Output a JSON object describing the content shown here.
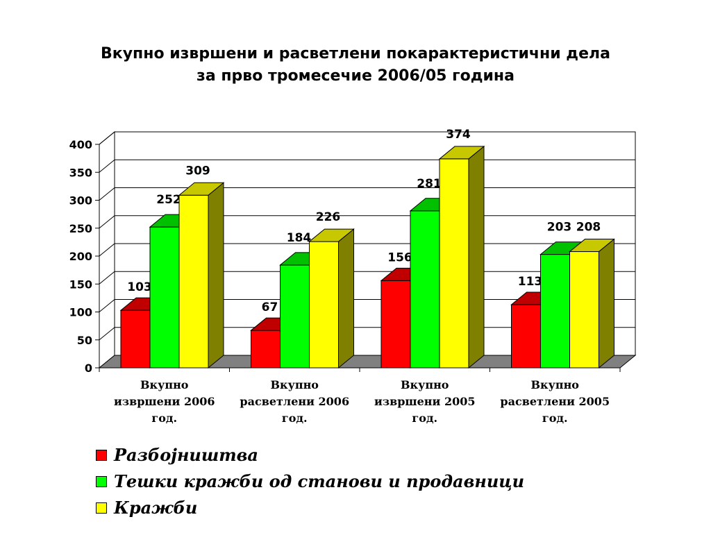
{
  "title": {
    "line1": "Вкупно извршени и расветлени покарактеристични дела",
    "line2": "за прво тромесечие 2006/05 година"
  },
  "chart_data": {
    "type": "bar",
    "style": "3d-clustered-column",
    "categories": [
      [
        "Вкупно",
        "извршени 2006",
        "год."
      ],
      [
        "Вкупно",
        "расветлени 2006",
        "год."
      ],
      [
        "Вкупно",
        "извршени 2005",
        "год."
      ],
      [
        "Вкупно",
        "расветлени 2005",
        "год."
      ]
    ],
    "series": [
      {
        "name": "Разбојништва",
        "values": [
          103,
          67,
          156,
          113
        ],
        "color": "#ff0000"
      },
      {
        "name": "Тешки кражби од станови и продавници",
        "values": [
          252,
          184,
          281,
          203
        ],
        "color": "#00ff00"
      },
      {
        "name": "Кражби",
        "values": [
          309,
          226,
          374,
          208
        ],
        "color": "#ffff00"
      }
    ],
    "ylim": [
      0,
      400
    ],
    "yticks": [
      0,
      50,
      100,
      150,
      200,
      250,
      300,
      350,
      400
    ],
    "grid": true,
    "legend_position": "bottom",
    "colors": {
      "floor": "#808080",
      "red_top": "#c00000",
      "red_side": "#800000",
      "green_top": "#00c000",
      "green_side": "#008000",
      "yellow_top": "#c8c800",
      "yellow_side": "#808000"
    }
  }
}
